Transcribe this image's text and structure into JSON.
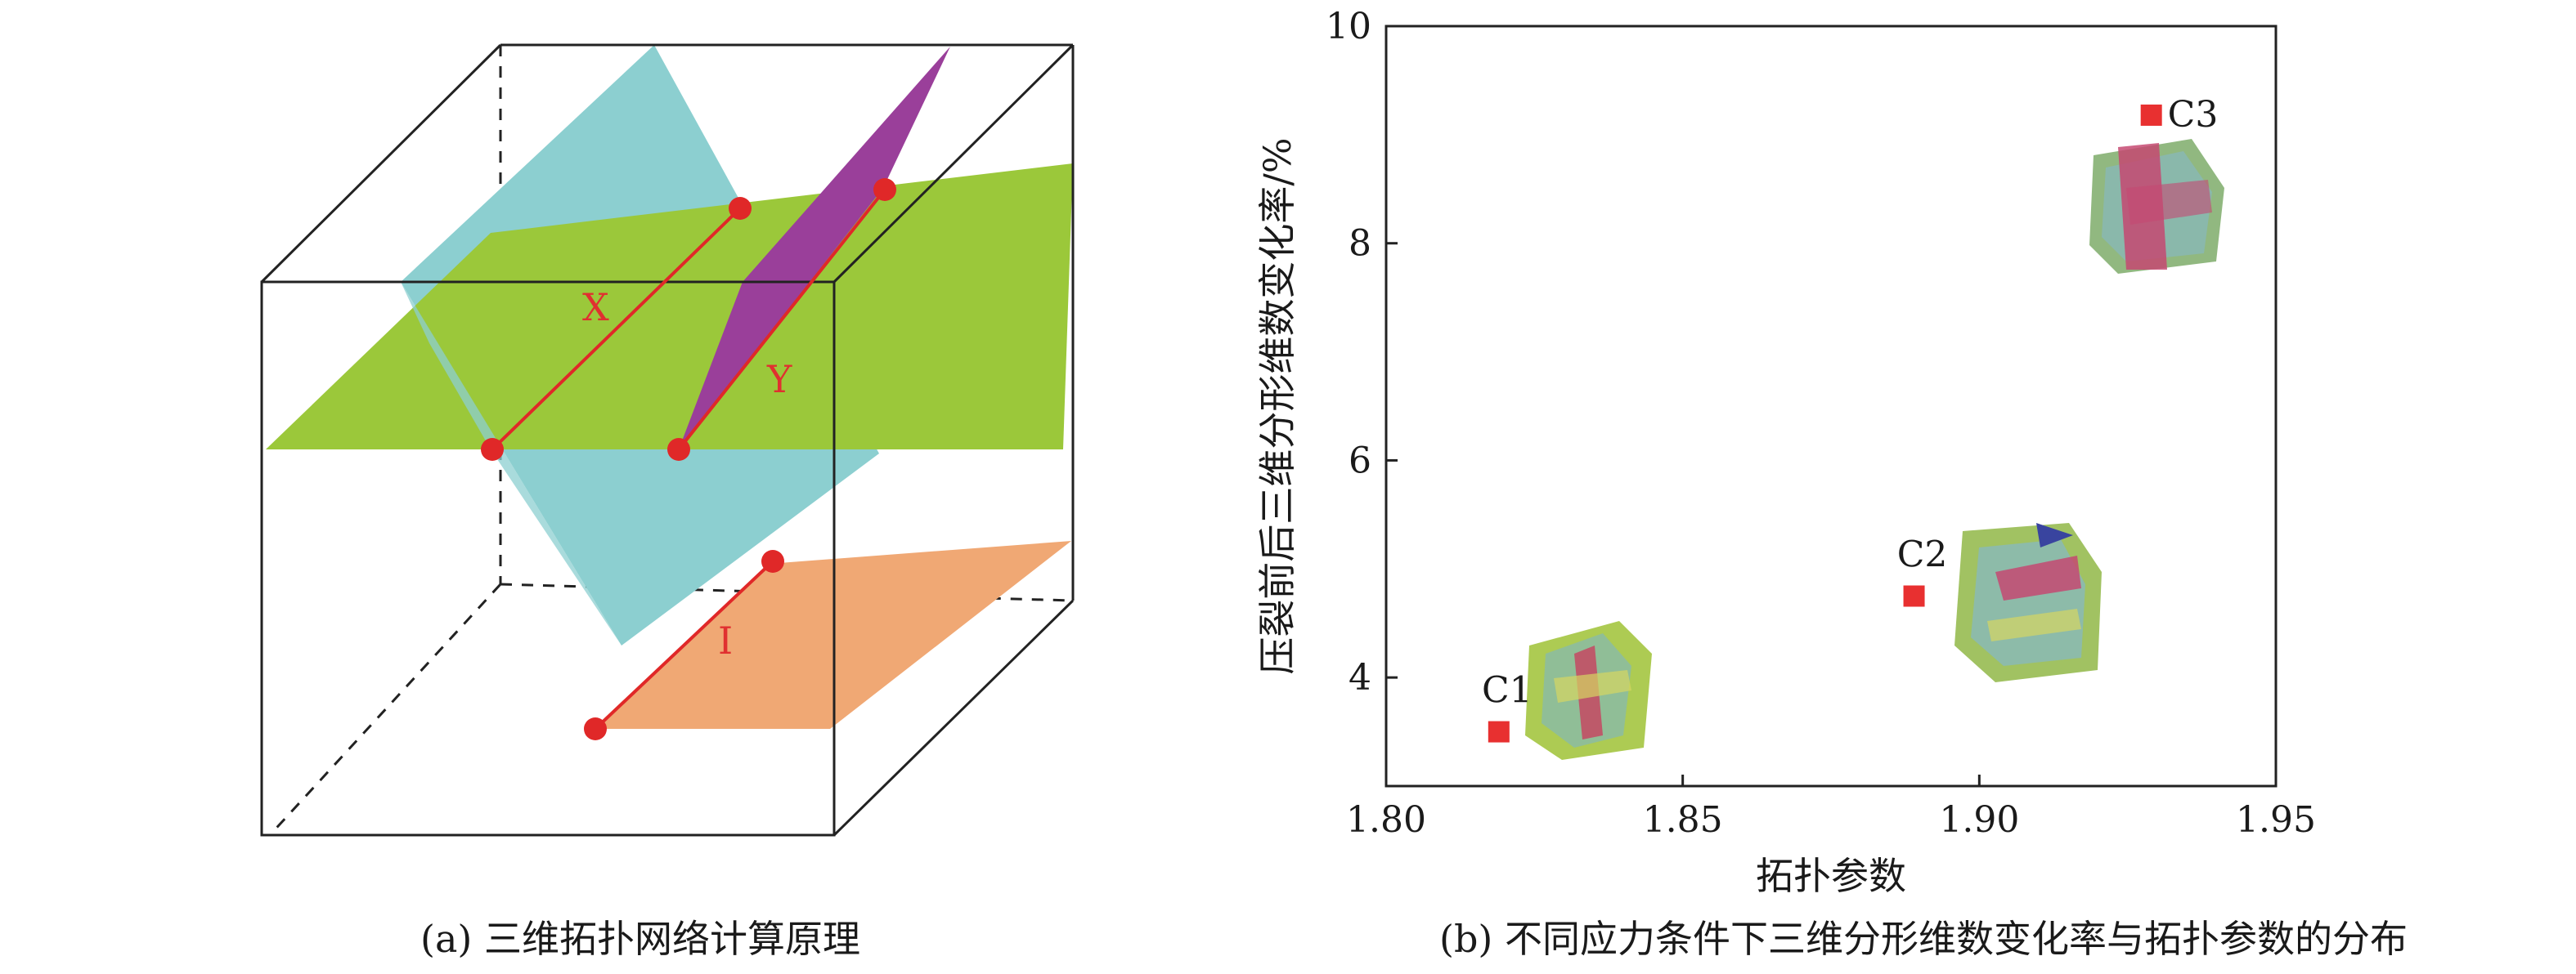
{
  "panel_a": {
    "caption": "(a) 三维拓扑网络计算原理",
    "line_labels": {
      "x": "X",
      "y": "Y",
      "i": "I"
    },
    "colors": {
      "cyan_plane": "#8ccfd0",
      "green_plane": "#9bc83a",
      "purple_plane": "#9a3f9a",
      "orange_plane": "#f0a874",
      "node": "#e02828",
      "line": "#e02828"
    }
  },
  "panel_b": {
    "caption": "(b) 不同应力条件下三维分形维数变化率与拓扑参数的分布",
    "chart_data": {
      "type": "scatter",
      "title": "",
      "xlabel": "拓扑参数",
      "ylabel": "压裂前后三维分形维数变化率/%",
      "xlim": [
        1.8,
        1.95
      ],
      "ylim": [
        3,
        10
      ],
      "xticks": [
        "1.80",
        "1.85",
        "1.90",
        "1.95"
      ],
      "yticks": [
        "4",
        "6",
        "8",
        "10"
      ],
      "grid": false,
      "marker_color": "#e83030",
      "points": [
        {
          "label": "C1",
          "x": 1.819,
          "y": 3.5
        },
        {
          "label": "C2",
          "x": 1.889,
          "y": 4.75
        },
        {
          "label": "C3",
          "x": 1.929,
          "y": 9.18
        }
      ]
    }
  }
}
